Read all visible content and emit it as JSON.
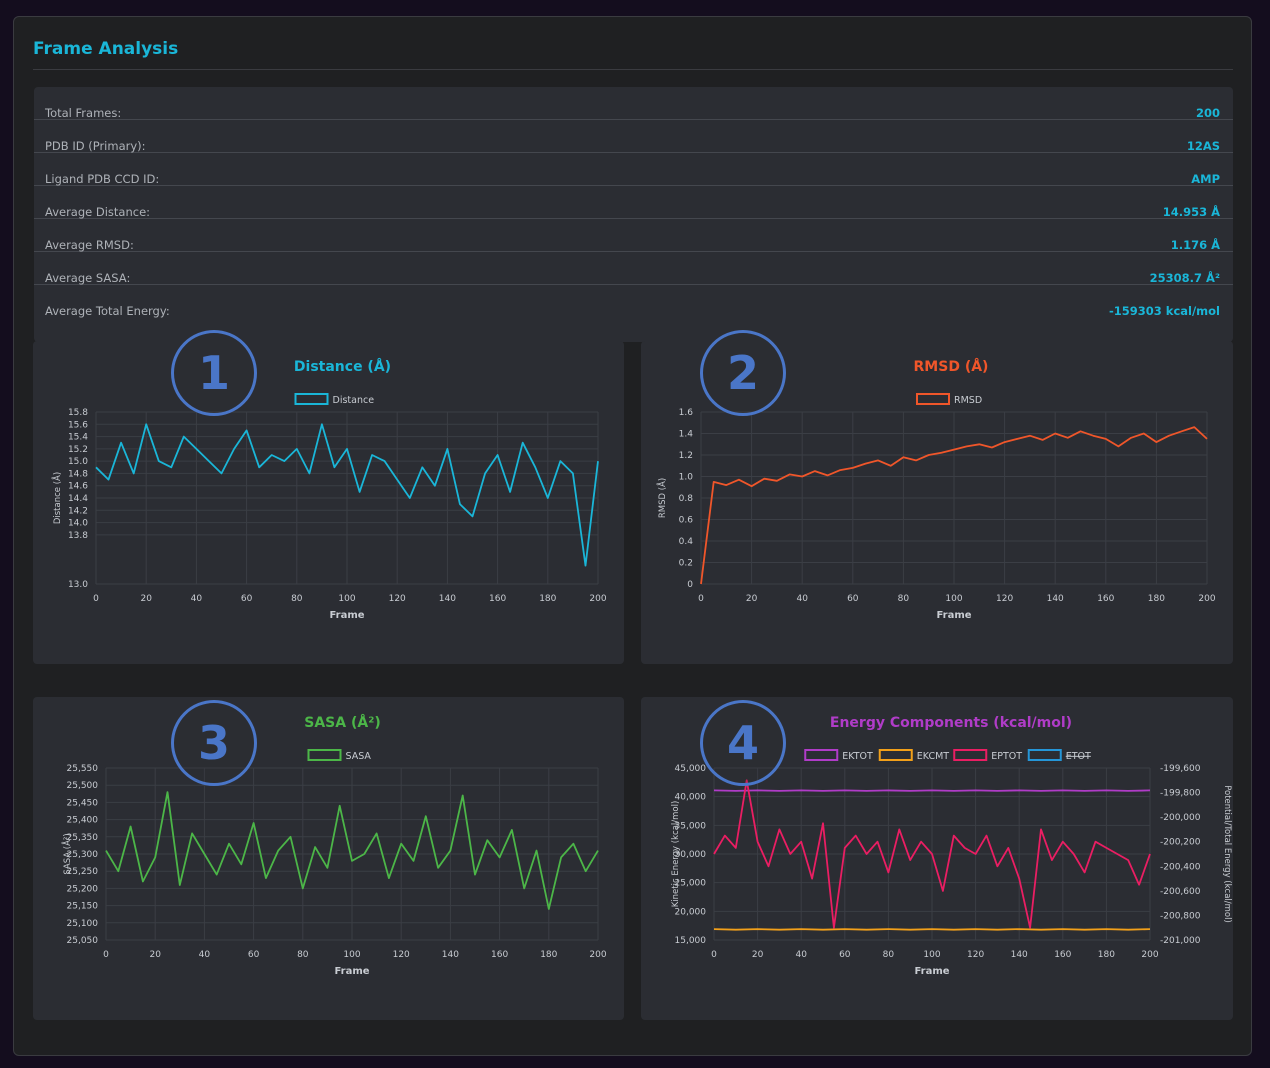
{
  "panel": {
    "title": "Frame Analysis"
  },
  "stats": [
    {
      "label": "Total Frames:",
      "value": "200"
    },
    {
      "label": "PDB ID (Primary):",
      "value": "12AS"
    },
    {
      "label": "Ligand PDB CCD ID:",
      "value": "AMP"
    },
    {
      "label": "Average Distance:",
      "value": "14.953 Å"
    },
    {
      "label": "Average RMSD:",
      "value": "1.176 Å"
    },
    {
      "label": "Average SASA:",
      "value": "25308.7 Å²"
    },
    {
      "label": "Average Total Energy:",
      "value": "-159303 kcal/mol"
    }
  ],
  "badges": [
    "1",
    "2",
    "3",
    "4"
  ],
  "colors": {
    "distance": "#1ab6d8",
    "rmsd": "#f0562a",
    "sasa": "#4cb648",
    "ektot": "#b03cc8",
    "ekcmt": "#f2a01a",
    "eptot": "#ea1e63",
    "etot": "#2596d8",
    "grid": "#3b3e45",
    "tick": "#c8ccd2"
  },
  "chart_data": [
    {
      "id": "distance",
      "type": "line",
      "title": "Distance (Å)",
      "legend": [
        "Distance"
      ],
      "xlabel": "Frame",
      "ylabel": "Distance (Å)",
      "xlim": [
        0,
        200
      ],
      "xticks": [
        "0",
        "20",
        "40",
        "60",
        "80",
        "100",
        "120",
        "140",
        "160",
        "180",
        "200"
      ],
      "ylim": [
        13.0,
        15.8
      ],
      "yticks": [
        "13.0",
        "13.8",
        "14.0",
        "14.2",
        "14.4",
        "14.6",
        "14.8",
        "15.0",
        "15.2",
        "15.4",
        "15.6",
        "15.8"
      ],
      "series": [
        {
          "name": "Distance",
          "x_step": 5,
          "values": [
            14.9,
            14.7,
            15.3,
            14.8,
            15.6,
            15.0,
            14.9,
            15.4,
            15.2,
            15.0,
            14.8,
            15.2,
            15.5,
            14.9,
            15.1,
            15.0,
            15.2,
            14.8,
            15.6,
            14.9,
            15.2,
            14.5,
            15.1,
            15.0,
            14.7,
            14.4,
            14.9,
            14.6,
            15.2,
            14.3,
            14.1,
            14.8,
            15.1,
            14.5,
            15.3,
            14.9,
            14.4,
            15.0,
            14.8,
            13.3,
            15.0
          ]
        }
      ]
    },
    {
      "id": "rmsd",
      "type": "line",
      "title": "RMSD (Å)",
      "legend": [
        "RMSD"
      ],
      "xlabel": "Frame",
      "ylabel": "RMSD (Å)",
      "xlim": [
        0,
        200
      ],
      "xticks": [
        "0",
        "20",
        "40",
        "60",
        "80",
        "100",
        "120",
        "140",
        "160",
        "180",
        "200"
      ],
      "ylim": [
        0,
        1.6
      ],
      "yticks": [
        "0",
        "0.2",
        "0.4",
        "0.6",
        "0.8",
        "1.0",
        "1.2",
        "1.4",
        "1.6"
      ],
      "series": [
        {
          "name": "RMSD",
          "x_step": 5,
          "values": [
            0.0,
            0.95,
            0.92,
            0.97,
            0.91,
            0.98,
            0.96,
            1.02,
            1.0,
            1.05,
            1.01,
            1.06,
            1.08,
            1.12,
            1.15,
            1.1,
            1.18,
            1.15,
            1.2,
            1.22,
            1.25,
            1.28,
            1.3,
            1.27,
            1.32,
            1.35,
            1.38,
            1.34,
            1.4,
            1.36,
            1.42,
            1.38,
            1.35,
            1.28,
            1.36,
            1.4,
            1.32,
            1.38,
            1.42,
            1.46,
            1.35
          ]
        }
      ]
    },
    {
      "id": "sasa",
      "type": "line",
      "title": "SASA (Å²)",
      "legend": [
        "SASA"
      ],
      "xlabel": "Frame",
      "ylabel": "SASA (Å²)",
      "xlim": [
        0,
        200
      ],
      "xticks": [
        "0",
        "20",
        "40",
        "60",
        "80",
        "100",
        "120",
        "140",
        "160",
        "180",
        "200"
      ],
      "ylim": [
        25050,
        25550
      ],
      "yticks": [
        "25,050",
        "25,100",
        "25,150",
        "25,200",
        "25,250",
        "25,300",
        "25,350",
        "25,400",
        "25,450",
        "25,500",
        "25,550"
      ],
      "series": [
        {
          "name": "SASA",
          "x_step": 5,
          "values": [
            25310,
            25250,
            25380,
            25220,
            25290,
            25480,
            25210,
            25360,
            25300,
            25240,
            25330,
            25270,
            25390,
            25230,
            25310,
            25350,
            25200,
            25320,
            25260,
            25440,
            25280,
            25300,
            25360,
            25230,
            25330,
            25280,
            25410,
            25260,
            25310,
            25470,
            25240,
            25340,
            25290,
            25370,
            25200,
            25310,
            25140,
            25290,
            25330,
            25250,
            25310
          ]
        }
      ]
    },
    {
      "id": "energy",
      "type": "line",
      "title": "Energy Components (kcal/mol)",
      "legend": [
        "EKTOT",
        "EKCMT",
        "EPTOT",
        "ETOT"
      ],
      "xlabel": "Frame",
      "ylabel": "Kinetic Energy (kcal/mol)",
      "ylabel2": "Potential/Total Energy (kcal/mol)",
      "xlim": [
        0,
        200
      ],
      "xticks": [
        "0",
        "20",
        "40",
        "60",
        "80",
        "100",
        "120",
        "140",
        "160",
        "180",
        "200"
      ],
      "ylim": [
        15000,
        45000
      ],
      "yticks": [
        "15,000",
        "20,000",
        "25,000",
        "30,000",
        "35,000",
        "40,000",
        "45,000"
      ],
      "ylim2": [
        -201000,
        -199600
      ],
      "yticks2": [
        "-201,000",
        "-200,800",
        "-200,600",
        "-200,400",
        "-200,200",
        "-200,000",
        "-199,800",
        "-199,600"
      ],
      "series": [
        {
          "name": "EKTOT",
          "x_step": 10,
          "values": [
            41100,
            41000,
            41100,
            41000,
            41100,
            41000,
            41100,
            41000,
            41100,
            41000,
            41100,
            41000,
            41100,
            41000,
            41100,
            41000,
            41100,
            41000,
            41100,
            41000,
            41100
          ]
        },
        {
          "name": "EKCMT",
          "x_step": 10,
          "values": [
            16900,
            16800,
            16900,
            16800,
            16900,
            16800,
            16900,
            16800,
            16900,
            16800,
            16900,
            16800,
            16900,
            16800,
            16900,
            16800,
            16900,
            16800,
            16900,
            16800,
            16900
          ]
        },
        {
          "name": "EPTOT",
          "x_step": 5,
          "values": [
            -200300,
            -200150,
            -200250,
            -199700,
            -200200,
            -200400,
            -200100,
            -200300,
            -200200,
            -200500,
            -200050,
            -200900,
            -200250,
            -200150,
            -200300,
            -200200,
            -200450,
            -200100,
            -200350,
            -200200,
            -200300,
            -200600,
            -200150,
            -200250,
            -200300,
            -200150,
            -200400,
            -200250,
            -200500,
            -200900,
            -200100,
            -200350,
            -200200,
            -200300,
            -200450,
            -200200,
            -200250,
            -200300,
            -200350,
            -200550,
            -200300
          ]
        }
      ]
    }
  ]
}
